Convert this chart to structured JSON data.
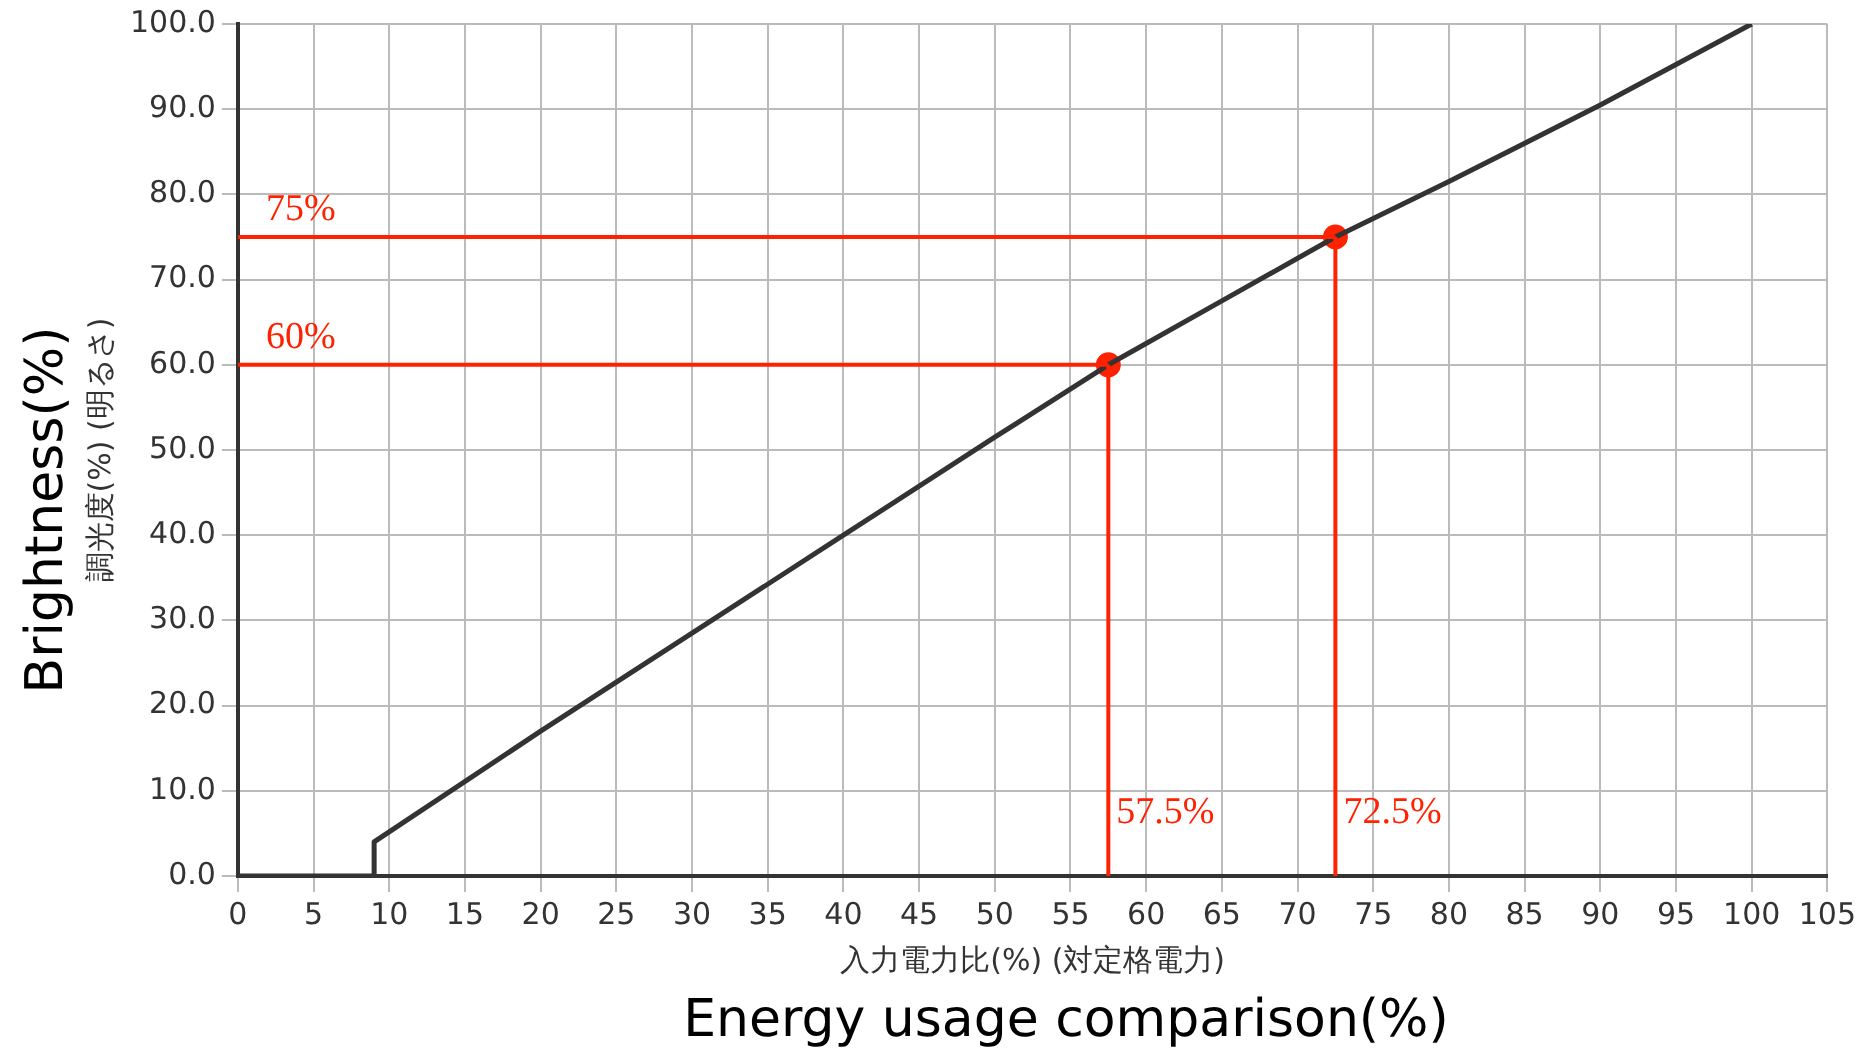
{
  "chart_data": {
    "type": "line",
    "xlabel": "入力電力比(%) (対定格電力)",
    "ylabel": "調光度(%) (明るさ)",
    "x": [
      0,
      9,
      9,
      20,
      30,
      40,
      50,
      57.5,
      65,
      72.5,
      80,
      90,
      100
    ],
    "series": [
      {
        "color": "#333333",
        "values": [
          0,
          0,
          4,
          17,
          28.5,
          40,
          51.5,
          60,
          67.5,
          75,
          81.5,
          90.5,
          100
        ],
        "marker": "none"
      },
      {
        "type": "scatter",
        "color": "#ff2200",
        "x": [
          57.5,
          72.5
        ],
        "values": [
          60,
          75
        ],
        "marker": "circle"
      }
    ],
    "ref_lines": [
      {
        "axis": "y",
        "value": 75,
        "label": "75%",
        "color": "#ff2200"
      },
      {
        "axis": "y",
        "value": 60,
        "label": "60%",
        "color": "#ff2200"
      },
      {
        "axis": "x",
        "value": 57.5,
        "label": "57.5%",
        "color": "#ff2200"
      },
      {
        "axis": "x",
        "value": 72.5,
        "label": "72.5%",
        "color": "#ff2200"
      }
    ],
    "annotations": [
      "Brightness(%)",
      "Energy usage comparison(%)"
    ],
    "xlim": [
      0,
      105
    ],
    "xticks": [
      0,
      5,
      10,
      15,
      20,
      25,
      30,
      35,
      40,
      45,
      50,
      55,
      60,
      65,
      70,
      75,
      80,
      85,
      90,
      95,
      100,
      105
    ],
    "ylim": [
      0,
      100
    ],
    "yticks": [
      {
        "value": 0,
        "label": "0.0"
      },
      {
        "value": 10,
        "label": "10.0"
      },
      {
        "value": 20,
        "label": "20.0"
      },
      {
        "value": 30,
        "label": "30.0"
      },
      {
        "value": 40,
        "label": "40.0"
      },
      {
        "value": 50,
        "label": "50.0"
      },
      {
        "value": 60,
        "label": "60.0"
      },
      {
        "value": 70,
        "label": "70.0"
      },
      {
        "value": 80,
        "label": "80.0"
      },
      {
        "value": 90,
        "label": "90.0"
      },
      {
        "value": 100,
        "label": "100.0"
      }
    ],
    "grid": true,
    "legend": false
  }
}
